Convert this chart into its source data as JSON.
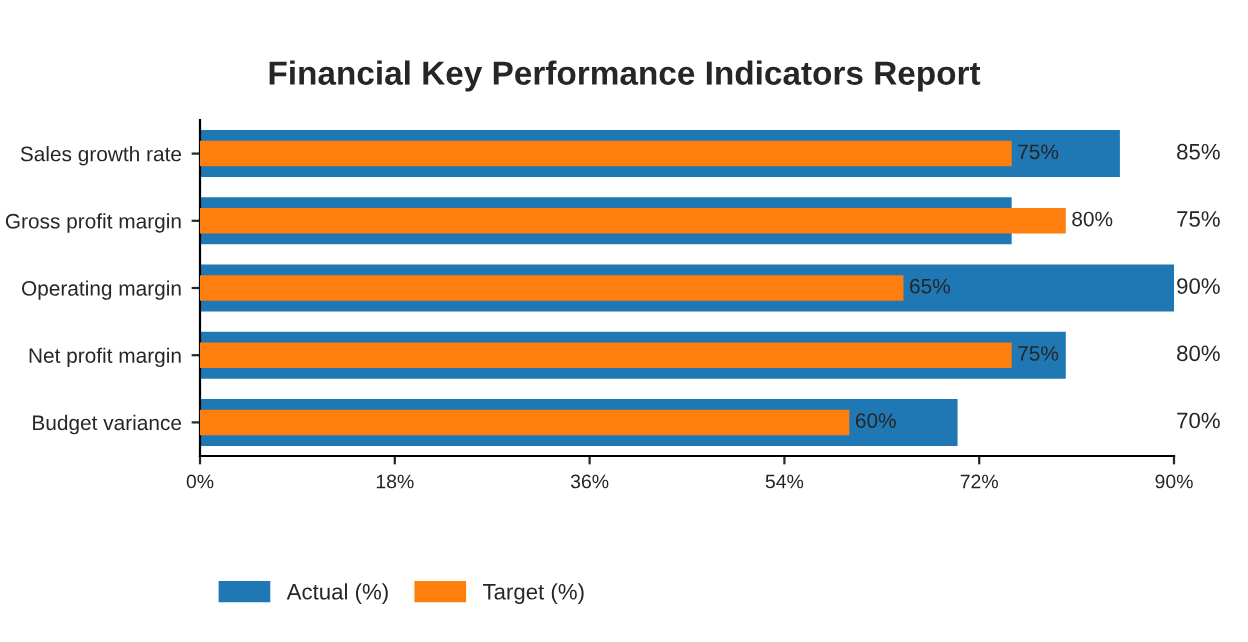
{
  "chart_data": {
    "type": "bar",
    "orientation": "horizontal",
    "title": "Financial Key Performance Indicators Report",
    "categories": [
      "Sales growth rate",
      "Gross profit margin",
      "Operating margin",
      "Net profit margin",
      "Budget variance"
    ],
    "series": [
      {
        "name": "Actual (%)",
        "color": "#1f77b4",
        "values": [
          85,
          75,
          90,
          80,
          70
        ],
        "value_labels": [
          "85%",
          "75%",
          "90%",
          "80%",
          "70%"
        ]
      },
      {
        "name": "Target (%)",
        "color": "#ff7f0e",
        "values": [
          75,
          80,
          65,
          75,
          60
        ],
        "value_labels": [
          "75%",
          "80%",
          "65%",
          "75%",
          "60%"
        ]
      }
    ],
    "xlim": [
      0,
      90
    ],
    "xticks": [
      {
        "value": 0,
        "label": "0%"
      },
      {
        "value": 18,
        "label": "18%"
      },
      {
        "value": 36,
        "label": "36%"
      },
      {
        "value": 54,
        "label": "54%"
      },
      {
        "value": 72,
        "label": "72%"
      },
      {
        "value": 90,
        "label": "90%"
      }
    ],
    "grid": false,
    "legend": "bottom left"
  }
}
